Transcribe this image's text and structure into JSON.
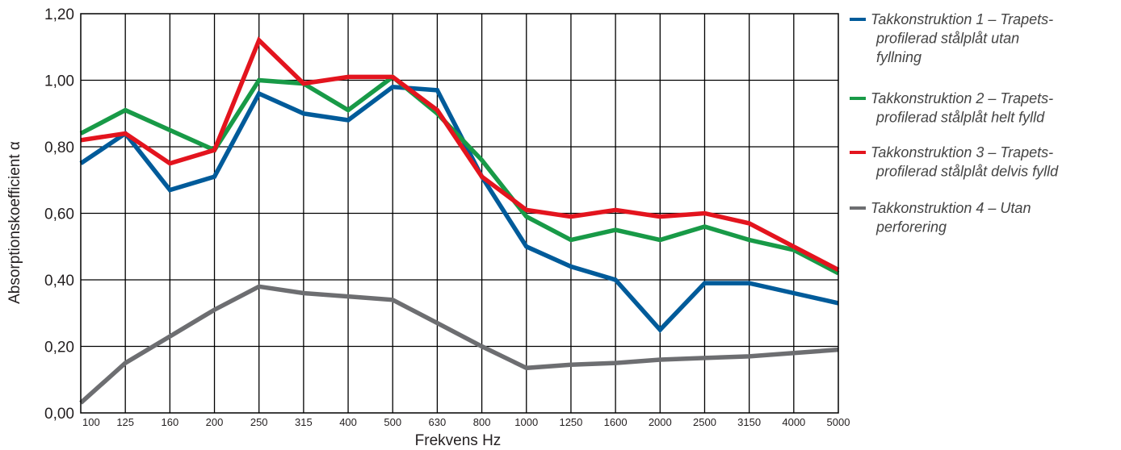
{
  "chart_data": {
    "type": "line",
    "xlabel": "Frekvens Hz",
    "ylabel": "Absorptionskoefficient α",
    "ylim": [
      0,
      1.2
    ],
    "y_ticks": [
      "0,00",
      "0,20",
      "0,40",
      "0,60",
      "0,80",
      "1,00",
      "1,20"
    ],
    "categories": [
      "100",
      "125",
      "160",
      "200",
      "250",
      "315",
      "400",
      "500",
      "630",
      "800",
      "1000",
      "1250",
      "1600",
      "2000",
      "2500",
      "3150",
      "4000",
      "5000"
    ],
    "grid": true,
    "legend_position": "right",
    "series": [
      {
        "name": "Takkonstruktion 1 – Trapets-profilerad stålplåt utan fyllning",
        "legend_lines": [
          "Takkonstruktion 1 – Trapets-",
          "profilerad stålplåt utan",
          "fyllning"
        ],
        "color": "#005b9a",
        "values": [
          0.75,
          0.84,
          0.67,
          0.71,
          0.96,
          0.9,
          0.88,
          0.98,
          0.97,
          0.71,
          0.5,
          0.44,
          0.4,
          0.25,
          0.39,
          0.39,
          0.36,
          0.33
        ]
      },
      {
        "name": "Takkonstruktion 2 – Trapets-profilerad stålplåt helt fylld",
        "legend_lines": [
          "Takkonstruktion 2 – Trapets-",
          "profilerad stålplåt helt fylld"
        ],
        "color": "#189a47",
        "values": [
          0.84,
          0.91,
          0.85,
          0.79,
          1.0,
          0.99,
          0.91,
          1.01,
          0.9,
          0.76,
          0.59,
          0.52,
          0.55,
          0.52,
          0.56,
          0.52,
          0.49,
          0.42
        ]
      },
      {
        "name": "Takkonstruktion 3 – Trapets-profilerad stålplåt delvis fylld",
        "legend_lines": [
          "Takkonstruktion 3 – Trapets-",
          "profilerad stålplåt delvis fylld"
        ],
        "color": "#e3141e",
        "values": [
          0.82,
          0.84,
          0.75,
          0.79,
          1.12,
          0.99,
          1.01,
          1.01,
          0.91,
          0.71,
          0.61,
          0.59,
          0.61,
          0.59,
          0.6,
          0.57,
          0.5,
          0.43
        ]
      },
      {
        "name": "Takkonstruktion 4 – Utan perforering",
        "legend_lines": [
          "Takkonstruktion 4 – Utan",
          "perforering"
        ],
        "color": "#6d6e71",
        "values": [
          0.03,
          0.15,
          0.23,
          0.31,
          0.38,
          0.36,
          0.35,
          0.34,
          0.27,
          0.2,
          0.135,
          0.145,
          0.15,
          0.16,
          0.165,
          0.17,
          0.18,
          0.19
        ]
      }
    ]
  }
}
